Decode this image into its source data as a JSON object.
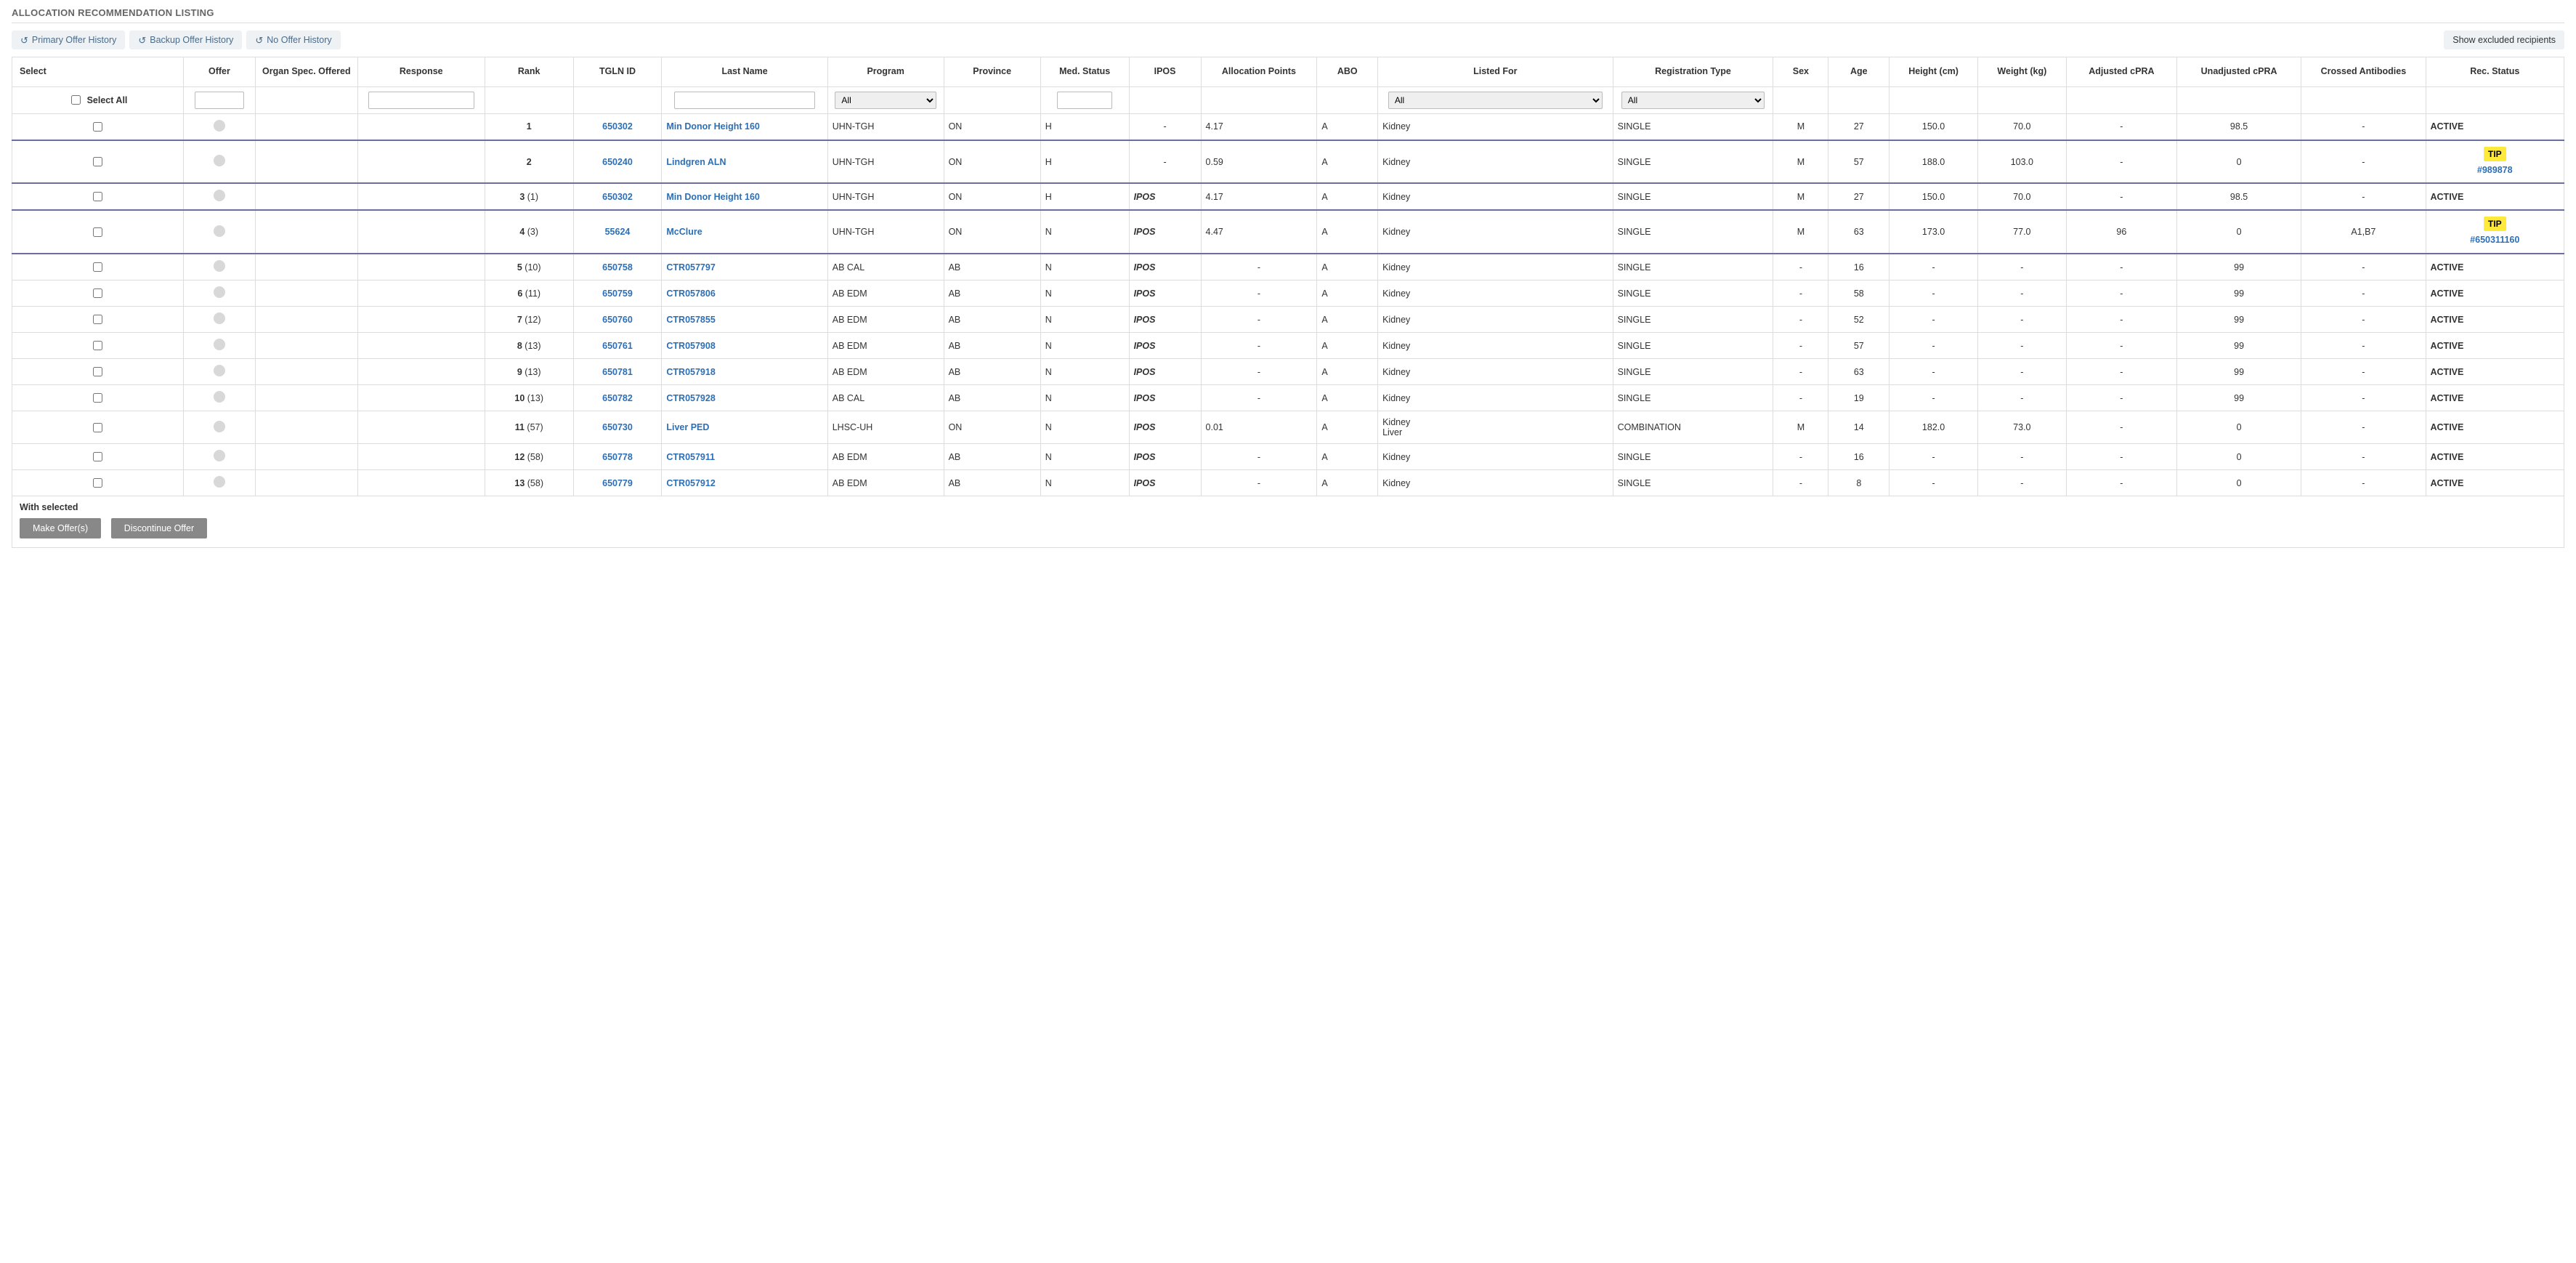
{
  "title": "ALLOCATION RECOMMENDATION LISTING",
  "toolbar": {
    "primary_history": "Primary Offer History",
    "backup_history": "Backup Offer History",
    "no_history": "No Offer History",
    "show_excluded": "Show excluded recipients"
  },
  "columns": {
    "select": "Select",
    "offer": "Offer",
    "organ_spec": "Organ Spec. Offered",
    "response": "Response",
    "rank": "Rank",
    "tgln_id": "TGLN ID",
    "last_name": "Last Name",
    "program": "Program",
    "province": "Province",
    "med_status": "Med. Status",
    "ipos": "IPOS",
    "allocation_points": "Allocation Points",
    "abo": "ABO",
    "listed_for": "Listed For",
    "registration_type": "Registration Type",
    "sex": "Sex",
    "age": "Age",
    "height": "Height (cm)",
    "weight": "Weight (kg)",
    "adjusted_cpra": "Adjusted cPRA",
    "unadjusted_cpra": "Unadjusted cPRA",
    "crossed_antibodies": "Crossed Antibodies",
    "rec_status": "Rec. Status"
  },
  "filters": {
    "select_all_label": "Select All",
    "program_option": "All",
    "listed_for_option": "All",
    "reg_type_option": "All"
  },
  "rows": [
    {
      "rank": "1",
      "rank_sub": "",
      "tgln": "650302",
      "last_name": "Min Donor Height 160",
      "program": "UHN-TGH",
      "province": "ON",
      "med": "H",
      "ipos": "-",
      "alloc": "4.17",
      "abo": "A",
      "listed": "Kidney",
      "regtype": "SINGLE",
      "sex": "M",
      "age": "27",
      "height": "150.0",
      "weight": "70.0",
      "adj": "-",
      "unadj": "98.5",
      "crossed": "-",
      "status": "ACTIVE",
      "tip": false,
      "group_class": "group-bottom"
    },
    {
      "rank": "2",
      "rank_sub": "",
      "tgln": "650240",
      "last_name": "Lindgren ALN",
      "program": "UHN-TGH",
      "province": "ON",
      "med": "H",
      "ipos": "-",
      "alloc": "0.59",
      "abo": "A",
      "listed": "Kidney",
      "regtype": "SINGLE",
      "sex": "M",
      "age": "57",
      "height": "188.0",
      "weight": "103.0",
      "adj": "-",
      "unadj": "0",
      "crossed": "-",
      "status": "TIP",
      "tip": true,
      "tip_link": "#989878",
      "group_class": "group-bottom"
    },
    {
      "rank": "3",
      "rank_sub": " (1)",
      "tgln": "650302",
      "last_name": "Min Donor Height 160",
      "program": "UHN-TGH",
      "province": "ON",
      "med": "H",
      "ipos": "IPOS",
      "alloc": "4.17",
      "abo": "A",
      "listed": "Kidney",
      "regtype": "SINGLE",
      "sex": "M",
      "age": "27",
      "height": "150.0",
      "weight": "70.0",
      "adj": "-",
      "unadj": "98.5",
      "crossed": "-",
      "status": "ACTIVE",
      "tip": false,
      "group_class": ""
    },
    {
      "rank": "4",
      "rank_sub": " (3)",
      "tgln": "55624",
      "last_name": "McClure",
      "program": "UHN-TGH",
      "province": "ON",
      "med": "N",
      "ipos": "IPOS",
      "alloc": "4.47",
      "abo": "A",
      "listed": "Kidney",
      "regtype": "SINGLE",
      "sex": "M",
      "age": "63",
      "height": "173.0",
      "weight": "77.0",
      "adj": "96",
      "unadj": "0",
      "crossed": "A1,B7",
      "status": "TIP",
      "tip": true,
      "tip_link": "#650311160",
      "group_class": "group-top group-bottom"
    },
    {
      "rank": "5",
      "rank_sub": " (10)",
      "tgln": "650758",
      "last_name": "CTR057797",
      "program": "AB CAL",
      "province": "AB",
      "med": "N",
      "ipos": "IPOS",
      "alloc": "-",
      "abo": "A",
      "listed": "Kidney",
      "regtype": "SINGLE",
      "sex": "-",
      "age": "16",
      "height": "-",
      "weight": "-",
      "adj": "-",
      "unadj": "99",
      "crossed": "-",
      "status": "ACTIVE",
      "tip": false,
      "group_class": ""
    },
    {
      "rank": "6",
      "rank_sub": " (11)",
      "tgln": "650759",
      "last_name": "CTR057806",
      "program": "AB EDM",
      "province": "AB",
      "med": "N",
      "ipos": "IPOS",
      "alloc": "-",
      "abo": "A",
      "listed": "Kidney",
      "regtype": "SINGLE",
      "sex": "-",
      "age": "58",
      "height": "-",
      "weight": "-",
      "adj": "-",
      "unadj": "99",
      "crossed": "-",
      "status": "ACTIVE",
      "tip": false,
      "group_class": ""
    },
    {
      "rank": "7",
      "rank_sub": " (12)",
      "tgln": "650760",
      "last_name": "CTR057855",
      "program": "AB EDM",
      "province": "AB",
      "med": "N",
      "ipos": "IPOS",
      "alloc": "-",
      "abo": "A",
      "listed": "Kidney",
      "regtype": "SINGLE",
      "sex": "-",
      "age": "52",
      "height": "-",
      "weight": "-",
      "adj": "-",
      "unadj": "99",
      "crossed": "-",
      "status": "ACTIVE",
      "tip": false,
      "group_class": ""
    },
    {
      "rank": "8",
      "rank_sub": " (13)",
      "tgln": "650761",
      "last_name": "CTR057908",
      "program": "AB EDM",
      "province": "AB",
      "med": "N",
      "ipos": "IPOS",
      "alloc": "-",
      "abo": "A",
      "listed": "Kidney",
      "regtype": "SINGLE",
      "sex": "-",
      "age": "57",
      "height": "-",
      "weight": "-",
      "adj": "-",
      "unadj": "99",
      "crossed": "-",
      "status": "ACTIVE",
      "tip": false,
      "group_class": ""
    },
    {
      "rank": "9",
      "rank_sub": " (13)",
      "tgln": "650781",
      "last_name": "CTR057918",
      "program": "AB EDM",
      "province": "AB",
      "med": "N",
      "ipos": "IPOS",
      "alloc": "-",
      "abo": "A",
      "listed": "Kidney",
      "regtype": "SINGLE",
      "sex": "-",
      "age": "63",
      "height": "-",
      "weight": "-",
      "adj": "-",
      "unadj": "99",
      "crossed": "-",
      "status": "ACTIVE",
      "tip": false,
      "group_class": ""
    },
    {
      "rank": "10",
      "rank_sub": " (13)",
      "tgln": "650782",
      "last_name": "CTR057928",
      "program": "AB CAL",
      "province": "AB",
      "med": "N",
      "ipos": "IPOS",
      "alloc": "-",
      "abo": "A",
      "listed": "Kidney",
      "regtype": "SINGLE",
      "sex": "-",
      "age": "19",
      "height": "-",
      "weight": "-",
      "adj": "-",
      "unadj": "99",
      "crossed": "-",
      "status": "ACTIVE",
      "tip": false,
      "group_class": ""
    },
    {
      "rank": "11",
      "rank_sub": " (57)",
      "tgln": "650730",
      "last_name": "Liver PED",
      "program": "LHSC-UH",
      "province": "ON",
      "med": "N",
      "ipos": "IPOS",
      "alloc": "0.01",
      "abo": "A",
      "listed": "Kidney\nLiver",
      "regtype": "COMBINATION",
      "sex": "M",
      "age": "14",
      "height": "182.0",
      "weight": "73.0",
      "adj": "-",
      "unadj": "0",
      "crossed": "-",
      "status": "ACTIVE",
      "tip": false,
      "group_class": ""
    },
    {
      "rank": "12",
      "rank_sub": " (58)",
      "tgln": "650778",
      "last_name": "CTR057911",
      "program": "AB EDM",
      "province": "AB",
      "med": "N",
      "ipos": "IPOS",
      "alloc": "-",
      "abo": "A",
      "listed": "Kidney",
      "regtype": "SINGLE",
      "sex": "-",
      "age": "16",
      "height": "-",
      "weight": "-",
      "adj": "-",
      "unadj": "0",
      "crossed": "-",
      "status": "ACTIVE",
      "tip": false,
      "group_class": ""
    },
    {
      "rank": "13",
      "rank_sub": " (58)",
      "tgln": "650779",
      "last_name": "CTR057912",
      "program": "AB EDM",
      "province": "AB",
      "med": "N",
      "ipos": "IPOS",
      "alloc": "-",
      "abo": "A",
      "listed": "Kidney",
      "regtype": "SINGLE",
      "sex": "-",
      "age": "8",
      "height": "-",
      "weight": "-",
      "adj": "-",
      "unadj": "0",
      "crossed": "-",
      "status": "ACTIVE",
      "tip": false,
      "group_class": ""
    }
  ],
  "footer": {
    "with_selected": "With selected",
    "make_offers": "Make Offer(s)",
    "discontinue": "Discontinue Offer"
  },
  "colors": {
    "link": "#2d6fb5",
    "tip_bg": "#ffe93b",
    "btn_light_bg": "#eef2f5",
    "btn_grey_bg": "#888888",
    "border": "#dddddd",
    "group_border": "#6b6e9e"
  }
}
